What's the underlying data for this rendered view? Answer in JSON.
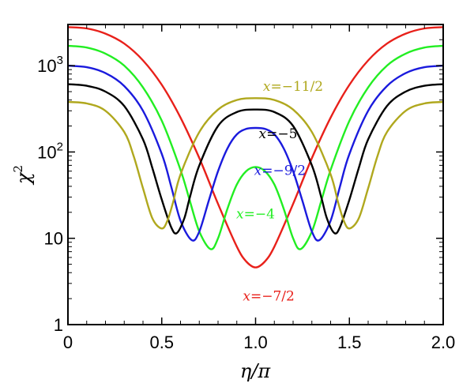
{
  "chart_data": {
    "type": "line",
    "xlabel": "η/π",
    "ylabel": "χ",
    "ylabel_superscript": "2",
    "xlim": [
      0,
      2
    ],
    "ylim": [
      1,
      3000
    ],
    "yscale": "log",
    "grid": false,
    "legend": "none",
    "x_ticks": [
      0,
      0.5,
      1.0,
      1.5,
      2.0
    ],
    "x_tick_labels": [
      "0",
      "0.5",
      "1.0",
      "1.5",
      "2.0"
    ],
    "y_ticks": [
      {
        "value": 1,
        "base": "1",
        "exp": ""
      },
      {
        "value": 10,
        "base": "10",
        "exp": ""
      },
      {
        "value": 100,
        "base": "10",
        "exp": "2"
      },
      {
        "value": 1000,
        "base": "10",
        "exp": "3"
      }
    ],
    "series": [
      {
        "name": "x=−7/2",
        "color": "#e8201a",
        "x": [
          0,
          0.1,
          0.2,
          0.3,
          0.4,
          0.5,
          0.6,
          0.7,
          0.8,
          0.9,
          0.95,
          1.0,
          1.05,
          1.1,
          1.2,
          1.3,
          1.4,
          1.5,
          1.6,
          1.7,
          1.8,
          1.9,
          2.0
        ],
        "values": [
          2800,
          2700,
          2350,
          1800,
          1150,
          600,
          250,
          85,
          25,
          8,
          5.4,
          4.6,
          5.4,
          8,
          25,
          85,
          250,
          600,
          1150,
          1800,
          2350,
          2700,
          2800
        ]
      },
      {
        "name": "x=−4",
        "color": "#22ee22",
        "x": [
          0,
          0.1,
          0.2,
          0.3,
          0.4,
          0.5,
          0.6,
          0.65,
          0.7,
          0.76,
          0.8,
          0.85,
          0.9,
          0.95,
          1.0,
          1.05,
          1.1,
          1.15,
          1.2,
          1.24,
          1.3,
          1.35,
          1.4,
          1.5,
          1.6,
          1.7,
          1.8,
          1.9,
          2.0
        ],
        "values": [
          1700,
          1620,
          1380,
          1000,
          560,
          230,
          62,
          27,
          12,
          7.5,
          10,
          22,
          42,
          60,
          67,
          60,
          42,
          22,
          10,
          7.5,
          12,
          27,
          62,
          230,
          560,
          1000,
          1380,
          1620,
          1700
        ]
      },
      {
        "name": "x=−9/2",
        "color": "#1a1add",
        "x": [
          0,
          0.1,
          0.2,
          0.3,
          0.4,
          0.5,
          0.55,
          0.6,
          0.66,
          0.7,
          0.75,
          0.8,
          0.85,
          0.9,
          0.95,
          1.0,
          1.05,
          1.1,
          1.15,
          1.2,
          1.25,
          1.3,
          1.34,
          1.4,
          1.45,
          1.5,
          1.6,
          1.7,
          1.8,
          1.9,
          2.0
        ],
        "values": [
          1000,
          960,
          820,
          580,
          300,
          95,
          40,
          16,
          9.5,
          12,
          27,
          60,
          110,
          160,
          185,
          190,
          185,
          160,
          110,
          60,
          27,
          12,
          9.5,
          16,
          40,
          95,
          300,
          580,
          820,
          960,
          1000
        ]
      },
      {
        "name": "x=−5",
        "color": "#000000",
        "x": [
          0,
          0.1,
          0.2,
          0.3,
          0.4,
          0.45,
          0.5,
          0.55,
          0.58,
          0.62,
          0.65,
          0.7,
          0.8,
          0.9,
          1.0,
          1.1,
          1.2,
          1.3,
          1.35,
          1.38,
          1.42,
          1.45,
          1.5,
          1.55,
          1.6,
          1.7,
          1.8,
          1.9,
          2.0
        ],
        "values": [
          610,
          585,
          500,
          340,
          140,
          65,
          28,
          13.5,
          11.5,
          17,
          30,
          70,
          200,
          290,
          310,
          290,
          200,
          70,
          30,
          17,
          11.5,
          13.5,
          28,
          65,
          140,
          340,
          500,
          585,
          610
        ]
      },
      {
        "name": "x=−11/2",
        "color": "#b0a81e",
        "x": [
          0,
          0.1,
          0.2,
          0.3,
          0.35,
          0.4,
          0.45,
          0.5,
          0.53,
          0.56,
          0.6,
          0.7,
          0.8,
          0.9,
          1.0,
          1.1,
          1.2,
          1.3,
          1.4,
          1.44,
          1.47,
          1.5,
          1.55,
          1.6,
          1.65,
          1.7,
          1.8,
          1.9,
          2.0
        ],
        "values": [
          380,
          365,
          300,
          170,
          90,
          38,
          17,
          13,
          16,
          26,
          55,
          170,
          310,
          400,
          420,
          400,
          310,
          170,
          55,
          26,
          16,
          13,
          17,
          38,
          90,
          170,
          300,
          365,
          380
        ]
      }
    ],
    "annotations": [
      {
        "text": "x=−11/2",
        "color": "#b0a81e",
        "x": 1.2,
        "y": 510
      },
      {
        "text": "x=−5",
        "color": "#000000",
        "x": 1.12,
        "y": 145
      },
      {
        "text": "x=−9/2",
        "color": "#1a1add",
        "x": 1.13,
        "y": 54
      },
      {
        "text": "x=−4",
        "color": "#22ee22",
        "x": 1.0,
        "y": 17
      },
      {
        "text": "x=−7/2",
        "color": "#e8201a",
        "x": 1.07,
        "y": 1.9
      }
    ]
  }
}
